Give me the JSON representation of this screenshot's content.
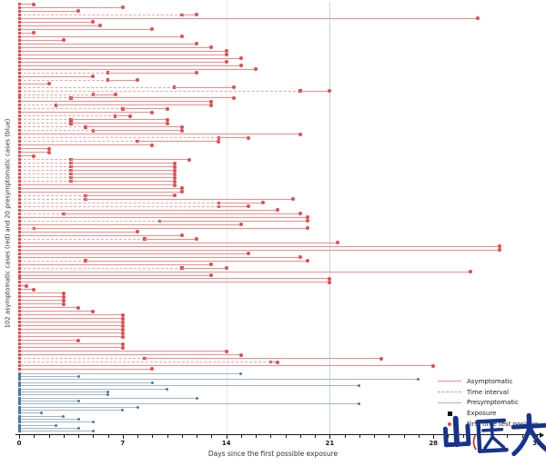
{
  "axes": {
    "xlabel": "Days since the first possible exposure",
    "ylabel": "102 asymptomatic cases (red)  and 20 presymptomatic cases (blue)",
    "x_ticks": [
      0,
      7,
      14,
      21,
      28,
      35
    ],
    "x_minor_tick_step": 1,
    "xlim": [
      0,
      35
    ],
    "gridlines": [
      {
        "x": 14,
        "color": "#e2ebe8"
      },
      {
        "x": 21,
        "color": "#bfdcdc"
      }
    ]
  },
  "legend": [
    {
      "key": "asymptomatic",
      "label": "Asymptomatic",
      "swatch": "solid-red"
    },
    {
      "key": "time-interval",
      "label": "Time interval",
      "swatch": "dashed-red"
    },
    {
      "key": "presymptomatic",
      "label": "Presymptomatic",
      "swatch": "solid-blue"
    },
    {
      "key": "exposure",
      "label": "Exposure",
      "swatch": "black-square"
    },
    {
      "key": "first-test-positive",
      "label": "First time test positive",
      "swatch": "red-dot"
    }
  ],
  "watermark": {
    "text": "山医大",
    "color": "#16338e",
    "accent_color": "#cc2222"
  },
  "colors": {
    "asymptomatic_line": "#f28b8b",
    "asymptomatic_dash": "#f5a3a3",
    "asymptomatic_marker": "#e84b4b",
    "presymptomatic_line": "#9fb6cc",
    "presymptomatic_marker": "#4d7aa8",
    "axis": "#1a1a1a"
  },
  "chart_data": {
    "type": "scatter",
    "subtype": "case-exposure-timeline",
    "title": "",
    "xlabel": "Days since the first possible exposure",
    "ylabel": "102 asymptomatic cases (red)  and 20 presymptomatic cases (blue)",
    "xlim": [
      0,
      35
    ],
    "x_ticks": [
      0,
      7,
      14,
      21,
      28,
      35
    ],
    "gridlines_x": [
      14,
      21
    ],
    "legend_position": "bottom-right",
    "series": [
      {
        "name": "Asymptomatic",
        "color": "#f28b8b",
        "marker_color": "#e84b4b",
        "rows_format": "[exposure_time_interval_end_day, first_test_positive_day] (interval 0 = exact exposure at day 0)",
        "rows": [
          [
            0,
            1
          ],
          [
            0,
            7
          ],
          [
            0,
            4
          ],
          [
            11,
            12
          ],
          [
            0,
            31
          ],
          [
            0,
            5
          ],
          [
            0,
            5.5
          ],
          [
            0,
            9
          ],
          [
            0,
            1
          ],
          [
            0,
            11
          ],
          [
            0,
            3
          ],
          [
            0,
            12
          ],
          [
            0,
            13
          ],
          [
            0,
            14
          ],
          [
            0,
            14
          ],
          [
            0,
            15
          ],
          [
            0,
            14
          ],
          [
            0,
            15
          ],
          [
            0,
            16
          ],
          [
            6,
            12
          ],
          [
            0,
            5
          ],
          [
            6,
            8
          ],
          [
            0,
            2
          ],
          [
            10.5,
            14.5
          ],
          [
            19,
            21
          ],
          [
            5,
            6.5
          ],
          [
            3.5,
            14.5
          ],
          [
            0,
            13
          ],
          [
            2.5,
            13
          ],
          [
            7,
            10
          ],
          [
            0,
            9
          ],
          [
            6.5,
            7.5
          ],
          [
            3.5,
            10
          ],
          [
            3.5,
            10
          ],
          [
            4.5,
            11
          ],
          [
            5,
            11
          ],
          [
            0,
            19
          ],
          [
            13.5,
            15.5
          ],
          [
            8,
            13.5
          ],
          [
            0,
            9
          ],
          [
            0,
            2
          ],
          [
            0,
            2
          ],
          [
            0,
            1
          ],
          [
            3.5,
            11.5
          ],
          [
            3.5,
            10.5
          ],
          [
            3.5,
            10.5
          ],
          [
            3.5,
            10.5
          ],
          [
            3.5,
            10.5
          ],
          [
            3.5,
            10.5
          ],
          [
            3.5,
            10.5
          ],
          [
            0,
            10.5
          ],
          [
            0,
            11
          ],
          [
            0,
            11
          ],
          [
            4.5,
            10.5
          ],
          [
            4.5,
            18.5
          ],
          [
            13.5,
            16.5
          ],
          [
            13.5,
            15.5
          ],
          [
            0,
            17.5
          ],
          [
            3,
            19
          ],
          [
            0,
            19.5
          ],
          [
            9.5,
            19.5
          ],
          [
            0,
            15
          ],
          [
            1,
            19.5
          ],
          [
            0,
            8
          ],
          [
            0,
            11
          ],
          [
            8.5,
            12
          ],
          [
            0,
            21.5
          ],
          [
            0,
            32.5
          ],
          [
            0,
            32.5
          ],
          [
            0,
            15.5
          ],
          [
            0,
            19
          ],
          [
            4.5,
            19.5
          ],
          [
            0,
            13
          ],
          [
            11,
            14
          ],
          [
            0,
            30.5
          ],
          [
            0,
            13
          ],
          [
            0,
            21
          ],
          [
            0,
            21
          ],
          [
            0,
            0.5
          ],
          [
            0,
            1
          ],
          [
            0,
            3
          ],
          [
            0,
            3
          ],
          [
            0,
            3
          ],
          [
            0,
            3
          ],
          [
            0,
            4
          ],
          [
            0,
            5
          ],
          [
            0,
            7
          ],
          [
            0,
            7
          ],
          [
            0,
            7
          ],
          [
            0,
            7
          ],
          [
            0,
            7
          ],
          [
            0,
            7
          ],
          [
            0,
            7
          ],
          [
            0,
            4
          ],
          [
            0,
            7
          ],
          [
            0,
            7
          ],
          [
            0,
            14
          ],
          [
            0,
            15
          ],
          [
            8.5,
            24.5
          ],
          [
            17,
            17.5
          ],
          [
            0,
            28
          ],
          [
            0,
            9
          ]
        ]
      },
      {
        "name": "Presymptomatic",
        "color": "#9fb6cc",
        "marker_color": "#4d7aa8",
        "rows_format": "first_test_positive_day",
        "rows": [
          15,
          4,
          27,
          9,
          23,
          10,
          6,
          6,
          12,
          4,
          23,
          8,
          7,
          1.5,
          3,
          4,
          5,
          2.5,
          4,
          5
        ]
      }
    ]
  }
}
